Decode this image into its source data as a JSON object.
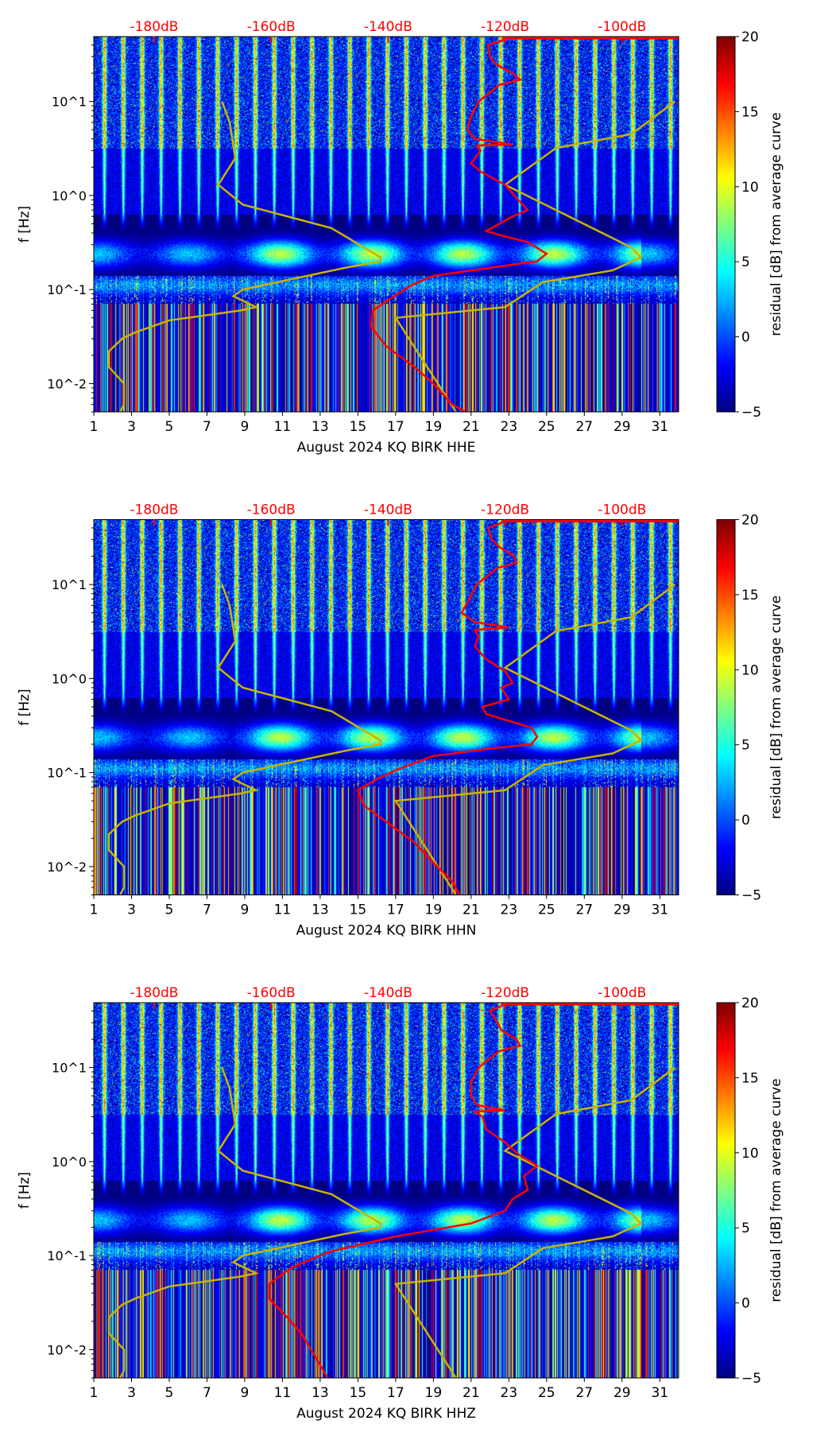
{
  "chart_data": [
    {
      "type": "heatmap",
      "title": "",
      "xlabel": "August 2024 KQ BIRK  HHE",
      "ylabel": "f [Hz]",
      "colorbar_label": "residual [dB] from average curve",
      "xlim": [
        1,
        32
      ],
      "ylim": [
        0.005,
        49
      ],
      "yscale": "log",
      "clim": [
        -5,
        20
      ],
      "colormap": "jet",
      "x_ticks": [
        "1",
        "3",
        "5",
        "7",
        "9",
        "11",
        "13",
        "15",
        "17",
        "19",
        "21",
        "23",
        "25",
        "27",
        "29",
        "31"
      ],
      "y_ticks": [
        {
          "value": 10,
          "label": "10^1"
        },
        {
          "value": 1,
          "label": "10^0"
        },
        {
          "value": 0.1,
          "label": "10^-1"
        },
        {
          "value": 0.01,
          "label": "10^-2"
        }
      ],
      "colorbar_ticks": [
        "20",
        "15",
        "10",
        "5",
        "0",
        "−5"
      ],
      "top_axis_ticks": [
        {
          "db": -180,
          "label": "-180dB"
        },
        {
          "db": -160,
          "label": "-160dB"
        },
        {
          "db": -140,
          "label": "-140dB"
        },
        {
          "db": -120,
          "label": "-120dB"
        },
        {
          "db": -100,
          "label": "-100dB"
        }
      ],
      "red_curve": [
        [
          22.7,
          49
        ],
        [
          22.7,
          45
        ],
        [
          21.9,
          40
        ],
        [
          22,
          30
        ],
        [
          22.3,
          25
        ],
        [
          23.2,
          20
        ],
        [
          23.6,
          17
        ],
        [
          22.5,
          15
        ],
        [
          21.4,
          10
        ],
        [
          21,
          7
        ],
        [
          20.8,
          5
        ],
        [
          21.2,
          4
        ],
        [
          23.2,
          3.5
        ],
        [
          21.3,
          3.4
        ],
        [
          21.5,
          3
        ],
        [
          21,
          2.2
        ],
        [
          21.5,
          1.8
        ],
        [
          22.8,
          1.3
        ],
        [
          23.5,
          0.9
        ],
        [
          24,
          0.7
        ],
        [
          23.2,
          0.6
        ],
        [
          22.5,
          0.5
        ],
        [
          21.8,
          0.42
        ],
        [
          22.5,
          0.38
        ],
        [
          24,
          0.32
        ],
        [
          25,
          0.24
        ],
        [
          24.5,
          0.2
        ],
        [
          22,
          0.17
        ],
        [
          19,
          0.14
        ],
        [
          17.8,
          0.11
        ],
        [
          16.5,
          0.075
        ],
        [
          15.8,
          0.06
        ],
        [
          15.7,
          0.04
        ],
        [
          16.5,
          0.025
        ],
        [
          18,
          0.015
        ],
        [
          19,
          0.01
        ],
        [
          20,
          0.006
        ],
        [
          20.7,
          0.005
        ]
      ],
      "red_top_line": [
        [
          22.7,
          49
        ],
        [
          32,
          49
        ]
      ]
    },
    {
      "type": "heatmap",
      "xlabel": "August 2024 KQ BIRK  HHN",
      "ylabel": "f [Hz]",
      "colorbar_label": "residual [dB] from average curve",
      "xlim": [
        1,
        32
      ],
      "ylim": [
        0.005,
        49
      ],
      "clim": [
        -5,
        20
      ],
      "red_curve": [
        [
          22.7,
          49
        ],
        [
          22.6,
          45
        ],
        [
          21.9,
          40
        ],
        [
          22.1,
          30
        ],
        [
          22.5,
          25
        ],
        [
          23.3,
          20
        ],
        [
          23.4,
          17
        ],
        [
          22.4,
          15
        ],
        [
          21.3,
          10
        ],
        [
          20.9,
          7
        ],
        [
          20.5,
          5
        ],
        [
          21.2,
          4
        ],
        [
          23,
          3.5
        ],
        [
          21.2,
          3.3
        ],
        [
          21.4,
          2.8
        ],
        [
          21.2,
          2.2
        ],
        [
          21.8,
          1.6
        ],
        [
          22.8,
          1.2
        ],
        [
          23.2,
          0.9
        ],
        [
          22.6,
          0.8
        ],
        [
          23,
          0.6
        ],
        [
          21.6,
          0.5
        ],
        [
          21.8,
          0.42
        ],
        [
          22.5,
          0.38
        ],
        [
          24.2,
          0.3
        ],
        [
          24.5,
          0.24
        ],
        [
          24.2,
          0.2
        ],
        [
          22,
          0.18
        ],
        [
          19,
          0.15
        ],
        [
          17.2,
          0.11
        ],
        [
          16,
          0.085
        ],
        [
          15,
          0.065
        ],
        [
          15.3,
          0.045
        ],
        [
          16.5,
          0.03
        ],
        [
          18,
          0.018
        ],
        [
          19.2,
          0.01
        ],
        [
          20,
          0.007
        ],
        [
          20.4,
          0.005
        ]
      ],
      "red_top_line": [
        [
          22.7,
          49
        ],
        [
          32,
          49
        ]
      ]
    },
    {
      "type": "heatmap",
      "xlabel": "August 2024 KQ BIRK  HHZ",
      "ylabel": "f [Hz]",
      "colorbar_label": "residual [dB] from average curve",
      "xlim": [
        1,
        32
      ],
      "ylim": [
        0.005,
        49
      ],
      "clim": [
        -5,
        20
      ],
      "red_curve": [
        [
          22.7,
          49
        ],
        [
          22.6,
          45
        ],
        [
          22,
          40
        ],
        [
          22.4,
          30
        ],
        [
          22.6,
          25
        ],
        [
          23.4,
          20
        ],
        [
          23.6,
          17
        ],
        [
          22.5,
          15
        ],
        [
          21.4,
          10
        ],
        [
          21,
          7
        ],
        [
          21,
          5
        ],
        [
          21.3,
          4
        ],
        [
          22.8,
          3.5
        ],
        [
          21.2,
          3.4
        ],
        [
          21.6,
          3
        ],
        [
          21.8,
          2.2
        ],
        [
          22.8,
          1.6
        ],
        [
          23.5,
          1.2
        ],
        [
          24.5,
          0.9
        ],
        [
          23.8,
          0.7
        ],
        [
          24,
          0.5
        ],
        [
          23.2,
          0.4
        ],
        [
          22.8,
          0.3
        ],
        [
          21,
          0.22
        ],
        [
          17,
          0.16
        ],
        [
          13.5,
          0.11
        ],
        [
          11.5,
          0.075
        ],
        [
          10.3,
          0.05
        ],
        [
          10.3,
          0.035
        ],
        [
          11,
          0.025
        ],
        [
          12,
          0.015
        ],
        [
          12.8,
          0.008
        ],
        [
          13.4,
          0.005
        ]
      ],
      "red_top_line": [
        [
          22.7,
          49
        ],
        [
          32,
          49
        ]
      ]
    }
  ],
  "noise_models": {
    "low_curve": [
      [
        7.8,
        10
      ],
      [
        8.2,
        6
      ],
      [
        8.5,
        2.5
      ],
      [
        7.6,
        1.3
      ],
      [
        8.9,
        0.8
      ],
      [
        13.6,
        0.45
      ],
      [
        16.2,
        0.22
      ],
      [
        16.2,
        0.2
      ],
      [
        14.3,
        0.17
      ],
      [
        8.9,
        0.1
      ],
      [
        8.4,
        0.085
      ],
      [
        9.6,
        0.065
      ],
      [
        8.8,
        0.06
      ],
      [
        5,
        0.047
      ],
      [
        3.2,
        0.035
      ],
      [
        2.5,
        0.03
      ],
      [
        1.8,
        0.022
      ],
      [
        1.8,
        0.015
      ],
      [
        2.6,
        0.01
      ],
      [
        2.6,
        0.006
      ],
      [
        2.4,
        0.005
      ]
    ],
    "high_curve": [
      [
        31.8,
        10
      ],
      [
        29.5,
        4.5
      ],
      [
        25.5,
        3.2
      ],
      [
        22.8,
        1.3
      ],
      [
        29.5,
        0.28
      ],
      [
        30,
        0.22
      ],
      [
        28.5,
        0.16
      ],
      [
        24.8,
        0.12
      ],
      [
        22.8,
        0.065
      ],
      [
        17,
        0.05
      ],
      [
        20.2,
        0.005
      ]
    ]
  },
  "colors": {
    "red_curve": "#ff0000",
    "noise_model": "#c8b400",
    "top_labels": "#ff0000"
  }
}
